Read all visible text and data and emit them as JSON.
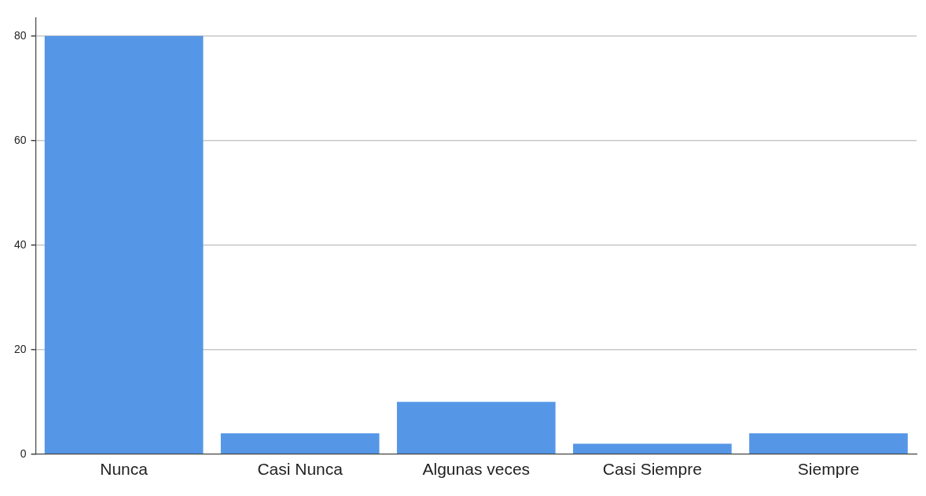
{
  "chart_data": {
    "type": "bar",
    "categories": [
      "Nunca",
      "Casi Nunca",
      "Algunas veces",
      "Casi Siempre",
      "Siempre"
    ],
    "values": [
      80,
      4,
      10,
      2,
      4
    ],
    "color": "#5596e6",
    "ylim": [
      0,
      83.5
    ],
    "yticks": [
      0,
      20,
      40,
      60,
      80
    ],
    "grid": "y",
    "legend": false
  }
}
